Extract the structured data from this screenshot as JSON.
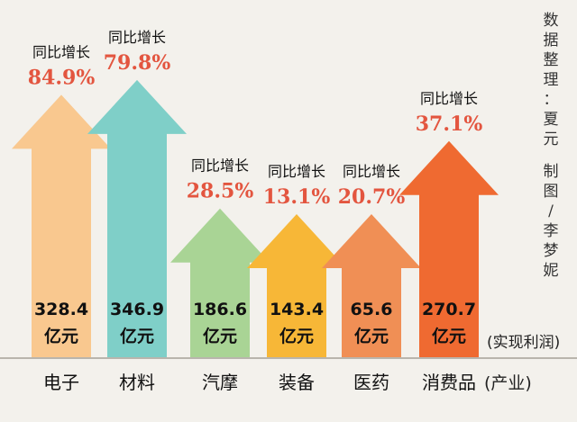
{
  "chart_data": {
    "type": "bar",
    "categories": [
      "电子",
      "材料",
      "汽摩",
      "装备",
      "医药",
      "消费品"
    ],
    "values": [
      328.4,
      346.9,
      186.6,
      143.4,
      65.6,
      270.7
    ],
    "value_unit": "亿元",
    "growth_label": "同比增长",
    "growth": [
      "84.9%",
      "79.8%",
      "28.5%",
      "13.1%",
      "20.7%",
      "37.1%"
    ],
    "growth_values": [
      84.9,
      79.8,
      28.5,
      13.1,
      20.7,
      37.1
    ],
    "value_axis_label": "(实现利润)",
    "category_axis_label": "(产业)",
    "colors": [
      "#f9c88f",
      "#7fcfc8",
      "#a9d495",
      "#f7b737",
      "#f08f55",
      "#ef6a31"
    ],
    "credits": [
      "数据整理：夏元",
      "制图/李梦妮"
    ]
  }
}
